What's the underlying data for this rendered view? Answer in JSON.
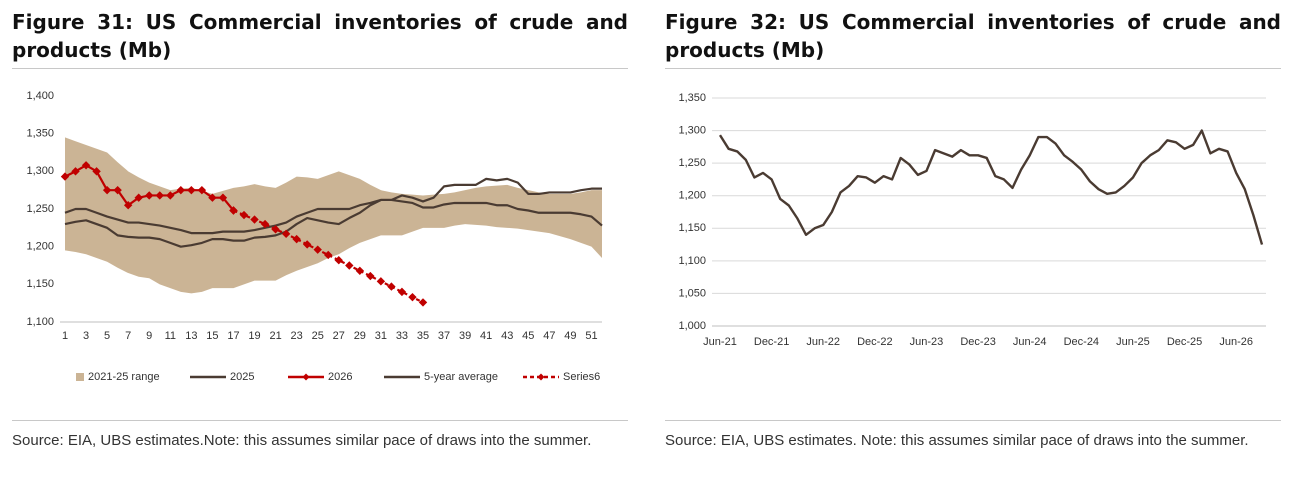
{
  "chart_data": [
    {
      "type": "line",
      "title": "Figure 31: US Commercial inventories of crude and products (Mb)",
      "note": "Source: EIA, UBS estimates.Note: this assumes similar pace of draws into the summer.",
      "categories": [
        1,
        null,
        3,
        null,
        5,
        null,
        7,
        null,
        9,
        null,
        11,
        null,
        13,
        null,
        15,
        null,
        17,
        null,
        19,
        null,
        21,
        null,
        23,
        null,
        25,
        null,
        27,
        null,
        29,
        null,
        31,
        null,
        33,
        null,
        35,
        null,
        37,
        null,
        39,
        null,
        41,
        null,
        43,
        null,
        45,
        null,
        47,
        null,
        49,
        null,
        51,
        null
      ],
      "band": {
        "name": "2021-25 range",
        "color": "#cbb495",
        "lower": [
          1195,
          1193,
          1190,
          1185,
          1180,
          1172,
          1165,
          1160,
          1158,
          1150,
          1145,
          1140,
          1138,
          1140,
          1145,
          1145,
          1145,
          1150,
          1155,
          1155,
          1155,
          1162,
          1168,
          1173,
          1178,
          1185,
          1190,
          1198,
          1205,
          1210,
          1215,
          1215,
          1215,
          1220,
          1225,
          1225,
          1225,
          1228,
          1230,
          1229,
          1228,
          1226,
          1225,
          1224,
          1222,
          1220,
          1218,
          1214,
          1210,
          1205,
          1200,
          1185
        ],
        "upper": [
          1345,
          1340,
          1335,
          1330,
          1325,
          1312,
          1300,
          1292,
          1285,
          1280,
          1275,
          1277,
          1278,
          1274,
          1270,
          1274,
          1278,
          1280,
          1283,
          1280,
          1278,
          1285,
          1293,
          1292,
          1290,
          1295,
          1300,
          1295,
          1290,
          1282,
          1275,
          1272,
          1270,
          1269,
          1268,
          1269,
          1270,
          1272,
          1275,
          1278,
          1280,
          1281,
          1282,
          1278,
          1275,
          1272,
          1270,
          1270,
          1270,
          1272,
          1275,
          1275
        ]
      },
      "series": [
        {
          "name": "2025",
          "color": "#4a3b32",
          "dashed": false,
          "markers": false,
          "values": [
            1230,
            1233,
            1235,
            1230,
            1225,
            1215,
            1213,
            1212,
            1212,
            1210,
            1205,
            1200,
            1202,
            1205,
            1210,
            1210,
            1208,
            1208,
            1212,
            1213,
            1215,
            1220,
            1230,
            1238,
            1235,
            1232,
            1230,
            1238,
            1245,
            1255,
            1262,
            1262,
            1268,
            1265,
            1260,
            1265,
            1280,
            1282,
            1282,
            1282,
            1290,
            1288,
            1290,
            1285,
            1270,
            1270,
            1272,
            1272,
            1272,
            1275,
            1277,
            1277
          ]
        },
        {
          "name": "2026",
          "color": "#c00000",
          "dashed": false,
          "markers": true,
          "values": [
            1293,
            1300,
            1308,
            1300,
            1275,
            1275,
            1255,
            1265,
            1268,
            1268,
            1268,
            1275,
            1275,
            1275,
            1265,
            1265,
            1248,
            null,
            null,
            null,
            null,
            null,
            null,
            null,
            null,
            null,
            null,
            null,
            null,
            null,
            null,
            null,
            null,
            null,
            null,
            null,
            null,
            null,
            null,
            null,
            null,
            null,
            null,
            null,
            null,
            null,
            null,
            null,
            null,
            null,
            null,
            null
          ]
        },
        {
          "name": "5-year average",
          "color": "#4a3b32",
          "dashed": false,
          "markers": false,
          "values": [
            1245,
            1250,
            1250,
            1245,
            1240,
            1236,
            1232,
            1232,
            1230,
            1228,
            1225,
            1222,
            1218,
            1218,
            1218,
            1220,
            1220,
            1220,
            1222,
            1225,
            1228,
            1232,
            1240,
            1245,
            1250,
            1250,
            1250,
            1250,
            1255,
            1258,
            1262,
            1262,
            1260,
            1258,
            1252,
            1252,
            1256,
            1258,
            1258,
            1258,
            1258,
            1255,
            1255,
            1250,
            1248,
            1245,
            1245,
            1245,
            1245,
            1243,
            1240,
            1228
          ]
        },
        {
          "name": "Series6",
          "color": "#c00000",
          "dashed": true,
          "markers": true,
          "values": [
            null,
            null,
            null,
            null,
            null,
            null,
            null,
            null,
            null,
            null,
            null,
            null,
            null,
            null,
            null,
            null,
            1248,
            1242,
            1236,
            1230,
            1223,
            1217,
            1210,
            1203,
            1196,
            1189,
            1182,
            1175,
            1168,
            1161,
            1154,
            1147,
            1140,
            1133,
            1126,
            null,
            null,
            null,
            null,
            null,
            null,
            null,
            null,
            null,
            null,
            null,
            null,
            null,
            null,
            null,
            null,
            null
          ]
        }
      ],
      "ylim": [
        1100,
        1400
      ],
      "yticks": [
        {
          "value": 1100,
          "label": "1,100"
        },
        {
          "value": 1150,
          "label": "1,150"
        },
        {
          "value": 1200,
          "label": "1,200"
        },
        {
          "value": 1250,
          "label": "1,250"
        },
        {
          "value": 1300,
          "label": "1,300"
        },
        {
          "value": 1350,
          "label": "1,350"
        },
        {
          "value": 1400,
          "label": "1,400"
        }
      ],
      "grid": false,
      "legend": "bottom"
    },
    {
      "type": "line",
      "title": "Figure 32: US Commercial inventories of crude and products (Mb)",
      "note": "Source: EIA, UBS estimates. Note: this assumes similar pace of draws into the summer.",
      "categories": [
        "Jun-21",
        null,
        null,
        null,
        null,
        null,
        "Dec-21",
        null,
        null,
        null,
        null,
        null,
        "Jun-22",
        null,
        null,
        null,
        null,
        null,
        "Dec-22",
        null,
        null,
        null,
        null,
        null,
        "Jun-23",
        null,
        null,
        null,
        null,
        null,
        "Dec-23",
        null,
        null,
        null,
        null,
        null,
        "Jun-24",
        null,
        null,
        null,
        null,
        null,
        "Dec-24",
        null,
        null,
        null,
        null,
        null,
        "Jun-25",
        null,
        null,
        null,
        null,
        null,
        "Dec-25",
        null,
        null,
        null,
        null,
        null,
        "Jun-26",
        null,
        null,
        null
      ],
      "series": [
        {
          "color": "#4a3b32",
          "dashed": false,
          "markers": false,
          "values": [
            1293,
            1272,
            1268,
            1255,
            1228,
            1235,
            1225,
            1195,
            1185,
            1165,
            1140,
            1150,
            1155,
            1175,
            1205,
            1215,
            1230,
            1228,
            1220,
            1230,
            1225,
            1258,
            1248,
            1232,
            1238,
            1270,
            1265,
            1260,
            1270,
            1262,
            1262,
            1258,
            1230,
            1225,
            1212,
            1240,
            1262,
            1290,
            1290,
            1280,
            1262,
            1252,
            1240,
            1222,
            1210,
            1203,
            1205,
            1215,
            1228,
            1250,
            1262,
            1270,
            1285,
            1282,
            1272,
            1278,
            1300,
            1265,
            1272,
            1268,
            1235,
            1210,
            1170,
            1125
          ]
        }
      ],
      "ylim": [
        1000,
        1350
      ],
      "yticks": [
        {
          "value": 1000,
          "label": "1,000"
        },
        {
          "value": 1050,
          "label": "1,050"
        },
        {
          "value": 1100,
          "label": "1,100"
        },
        {
          "value": 1150,
          "label": "1,150"
        },
        {
          "value": 1200,
          "label": "1,200"
        },
        {
          "value": 1250,
          "label": "1,250"
        },
        {
          "value": 1300,
          "label": "1,300"
        },
        {
          "value": 1350,
          "label": "1,350"
        }
      ],
      "grid": true
    }
  ]
}
